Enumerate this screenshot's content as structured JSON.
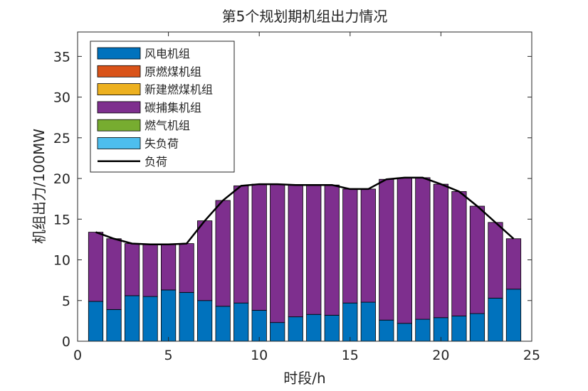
{
  "chart_data": {
    "type": "bar",
    "stacked": true,
    "title": "第5个规划期机组出力情况",
    "xlabel": "时段/h",
    "ylabel": "机组出力/100MW",
    "xlim": [
      0,
      25
    ],
    "ylim": [
      0,
      38
    ],
    "xticks": [
      0,
      5,
      10,
      15,
      20,
      25
    ],
    "yticks": [
      0,
      5,
      10,
      15,
      20,
      25,
      30,
      35
    ],
    "grid": false,
    "legend_position": "top-left",
    "x": [
      1,
      2,
      3,
      4,
      5,
      6,
      7,
      8,
      9,
      10,
      11,
      12,
      13,
      14,
      15,
      16,
      17,
      18,
      19,
      20,
      21,
      22,
      23,
      24
    ],
    "series": [
      {
        "name": "风电机组",
        "color": "#0072BD",
        "values": [
          4.9,
          3.9,
          5.6,
          5.5,
          6.3,
          6.0,
          5.0,
          4.3,
          4.7,
          3.8,
          2.3,
          3.0,
          3.3,
          3.2,
          4.7,
          4.8,
          2.6,
          2.2,
          2.7,
          2.9,
          3.1,
          3.4,
          5.3,
          6.4
        ]
      },
      {
        "name": "原燃煤机组",
        "color": "#D95319",
        "values": [
          0,
          0,
          0,
          0,
          0,
          0,
          0,
          0,
          0,
          0,
          0,
          0,
          0,
          0,
          0,
          0,
          0,
          0,
          0,
          0,
          0,
          0,
          0,
          0
        ]
      },
      {
        "name": "新建燃煤机组",
        "color": "#EDB120",
        "values": [
          0,
          0,
          0,
          0,
          0,
          0,
          0,
          0,
          0,
          0,
          0,
          0,
          0,
          0,
          0,
          0,
          0,
          0,
          0,
          0,
          0,
          0,
          0,
          0
        ]
      },
      {
        "name": "碳捕集机组",
        "color": "#7E2F8E",
        "values": [
          8.5,
          8.7,
          6.4,
          6.4,
          5.6,
          6.0,
          9.8,
          13.0,
          14.4,
          15.5,
          17.0,
          16.2,
          15.9,
          16.0,
          14.0,
          13.9,
          17.3,
          17.9,
          17.4,
          16.4,
          15.3,
          13.2,
          9.3,
          6.2
        ]
      },
      {
        "name": "燃气机组",
        "color": "#77AC30",
        "values": [
          0,
          0,
          0,
          0,
          0,
          0,
          0,
          0,
          0,
          0,
          0,
          0,
          0,
          0,
          0,
          0,
          0,
          0,
          0,
          0,
          0,
          0,
          0,
          0
        ]
      },
      {
        "name": "失负荷",
        "color": "#4DBEEE",
        "values": [
          0,
          0,
          0,
          0,
          0,
          0,
          0,
          0,
          0,
          0,
          0,
          0,
          0,
          0,
          0,
          0,
          0,
          0,
          0,
          0,
          0,
          0,
          0,
          0
        ]
      }
    ],
    "line": {
      "name": "负荷",
      "color": "#000000",
      "values": [
        13.4,
        12.6,
        12.0,
        11.9,
        11.9,
        12.0,
        14.8,
        17.3,
        19.1,
        19.3,
        19.3,
        19.2,
        19.2,
        19.2,
        18.7,
        18.7,
        19.9,
        20.1,
        20.1,
        19.3,
        18.4,
        16.6,
        14.6,
        12.6
      ]
    }
  }
}
